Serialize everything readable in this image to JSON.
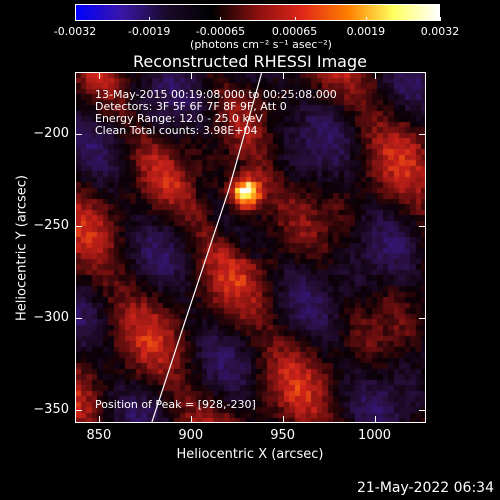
{
  "colorbar": {
    "ticks": [
      "-0.0032",
      "-0.0019",
      "-0.00065",
      "0.00065",
      "0.0019",
      "0.0032"
    ],
    "tick_values": [
      -0.0032,
      -0.0019,
      -0.00065,
      0.00065,
      0.0019,
      0.0032
    ],
    "units": "(photons cm⁻² s⁻¹ asec⁻²)",
    "colors": [
      "#0000ff",
      "#3a16a8",
      "#1a0a2a",
      "#000000",
      "#8a1010",
      "#e02818",
      "#ff8000",
      "#ffff60",
      "#ffffff"
    ]
  },
  "chart_data": {
    "type": "heatmap",
    "title": "Reconstructed RHESSI Image",
    "xlabel": "Heliocentric X (arcsec)",
    "ylabel": "Heliocentric Y (arcsec)",
    "xlim": [
      837,
      1028
    ],
    "ylim": [
      -357,
      -166
    ],
    "xticks": [
      850,
      900,
      950,
      1000
    ],
    "yticks": [
      -200,
      -250,
      -300,
      -350
    ],
    "xtick_labels": [
      "850",
      "900",
      "950",
      "1000"
    ],
    "ytick_labels": [
      "−200",
      "−250",
      "−300",
      "−350"
    ],
    "peak": {
      "x": 928,
      "y": -230
    },
    "limb_line": [
      [
        878,
        -357
      ],
      [
        900,
        -290
      ],
      [
        920,
        -230
      ],
      [
        938,
        -166
      ]
    ],
    "annotations": {
      "time": "13-May-2015 00:19:08.000 to 00:25:08.000",
      "detectors": "Detectors: 3F 5F 6F 7F 8F 9F, Att 0",
      "energy": "Energy Range: 12.0 - 25.0 keV",
      "clean": "Clean     Total counts: 3.98E+04",
      "peak_text": "Position of Peak = [928,-230]"
    }
  },
  "footer": {
    "timestamp": "21-May-2022 06:34"
  }
}
